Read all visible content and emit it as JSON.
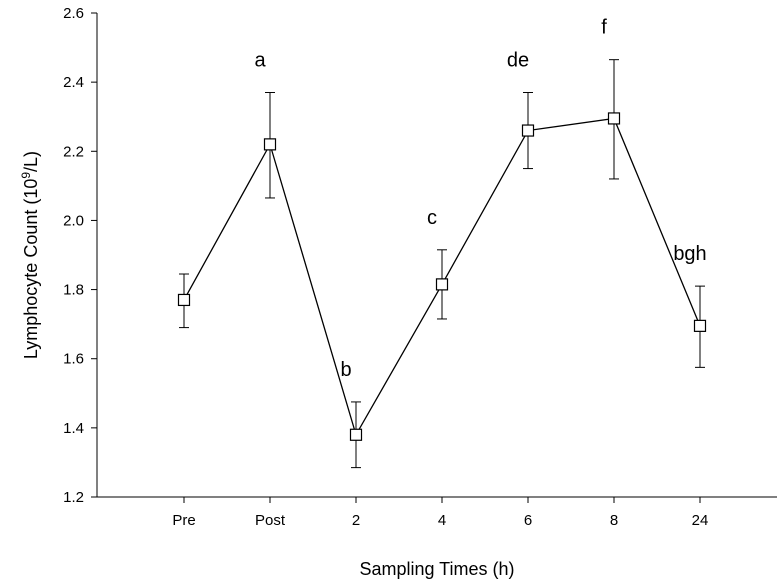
{
  "chart_data": {
    "type": "line",
    "title": "",
    "xlabel": "Sampling Times (h)",
    "ylabel_main": "Lymphocyte Count (10",
    "ylabel_sup": "9",
    "ylabel_tail": "/L)",
    "categories": [
      "Pre",
      "Post",
      "2",
      "4",
      "6",
      "8",
      "24"
    ],
    "ylim": [
      1.2,
      2.6
    ],
    "yticks": [
      "1.2",
      "1.4",
      "1.6",
      "1.8",
      "2.0",
      "2.2",
      "2.4",
      "2.6"
    ],
    "grid": false,
    "series": [
      {
        "values": [
          1.77,
          2.22,
          1.38,
          1.815,
          2.26,
          2.295,
          1.695
        ],
        "error_low": [
          1.69,
          2.065,
          1.285,
          1.715,
          2.15,
          2.12,
          1.575
        ],
        "error_high": [
          1.845,
          2.37,
          1.475,
          1.915,
          2.37,
          2.465,
          1.81
        ],
        "marker": "open-square",
        "color": "#000000"
      }
    ],
    "annotations": [
      {
        "category": "Post",
        "text": "a"
      },
      {
        "category": "2",
        "text": "b"
      },
      {
        "category": "4",
        "text": "c"
      },
      {
        "category": "6",
        "text": "de"
      },
      {
        "category": "8",
        "text": "f"
      },
      {
        "category": "24",
        "text": "bgh"
      }
    ]
  }
}
